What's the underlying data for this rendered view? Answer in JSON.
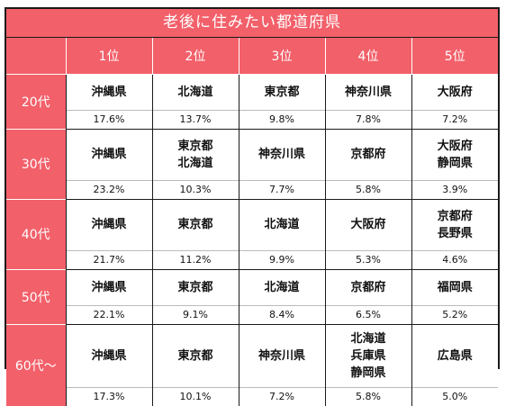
{
  "title": "老後に住みたい都道府県",
  "ranks": [
    "1位",
    "2位",
    "3位",
    "4位",
    "5位"
  ],
  "rows": [
    {
      "age": "20代",
      "prefs": [
        [
          "沖縄県"
        ],
        [
          "北海道"
        ],
        [
          "東京都"
        ],
        [
          "神奈川県"
        ],
        [
          "大阪府"
        ]
      ],
      "pcts": [
        "17.6%",
        "13.7%",
        "9.8%",
        "7.8%",
        "7.2%"
      ]
    },
    {
      "age": "30代",
      "prefs": [
        [
          "沖縄県"
        ],
        [
          "東京都",
          "北海道"
        ],
        [
          "神奈川県"
        ],
        [
          "京都府"
        ],
        [
          "大阪府",
          "静岡県"
        ]
      ],
      "pcts": [
        "23.2%",
        "10.3%",
        "7.7%",
        "5.8%",
        "3.9%"
      ]
    },
    {
      "age": "40代",
      "prefs": [
        [
          "沖縄県"
        ],
        [
          "東京都"
        ],
        [
          "北海道"
        ],
        [
          "大阪府"
        ],
        [
          "京都府",
          "長野県"
        ]
      ],
      "pcts": [
        "21.7%",
        "11.2%",
        "9.9%",
        "5.3%",
        "4.6%"
      ]
    },
    {
      "age": "50代",
      "prefs": [
        [
          "沖縄県"
        ],
        [
          "東京都"
        ],
        [
          "北海道"
        ],
        [
          "京都府"
        ],
        [
          "福岡県"
        ]
      ],
      "pcts": [
        "22.1%",
        "9.1%",
        "8.4%",
        "6.5%",
        "5.2%"
      ]
    },
    {
      "age": "60代～",
      "prefs": [
        [
          "沖縄県"
        ],
        [
          "東京都"
        ],
        [
          "神奈川県"
        ],
        [
          "北海道",
          "兵庫県",
          "静岡県"
        ],
        [
          "広島県"
        ]
      ],
      "pcts": [
        "17.3%",
        "10.1%",
        "7.2%",
        "5.8%",
        "5.0%"
      ]
    }
  ],
  "colors": {
    "header": "#f2606a",
    "border": "#1a1a1a",
    "cell": "#ffffff"
  }
}
